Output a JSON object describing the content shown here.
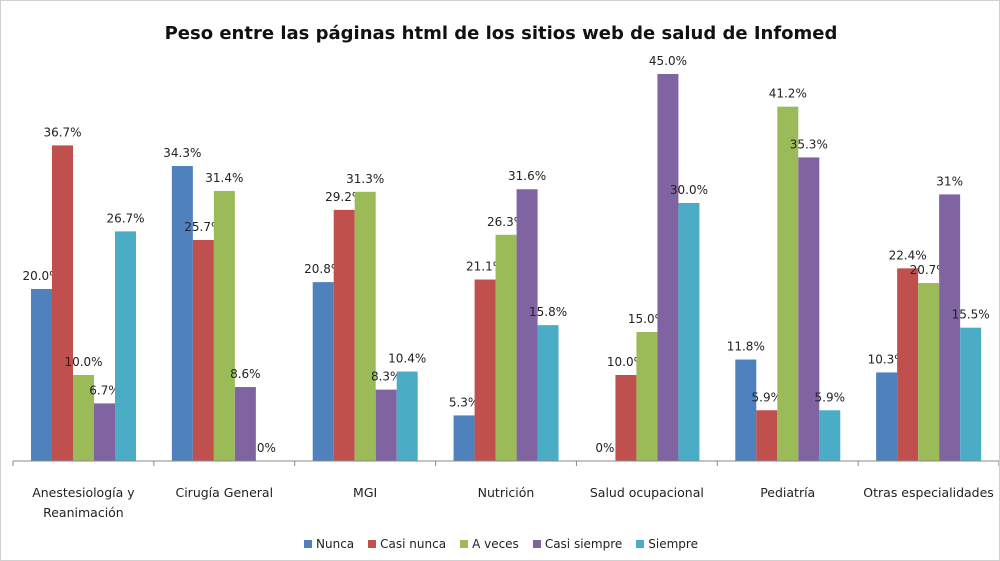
{
  "chart_data": {
    "type": "bar",
    "title": "Peso  entre  las páginas  html  de los sitios web de salud de  Infomed",
    "categories": [
      "Anestesiología y Reanimación",
      "Cirugía General",
      "MGI",
      "Nutrición",
      "Salud ocupacional",
      "Pediatría",
      "Otras especialidades"
    ],
    "series": [
      {
        "name": "Nunca",
        "color": "#4f81bd",
        "values": [
          20.0,
          34.3,
          20.8,
          5.3,
          0,
          11.8,
          10.3
        ],
        "value_labels": [
          "20.0%",
          "34.3%",
          "20.8%",
          "5.3%",
          "0%",
          "11.8%",
          "10.3%"
        ]
      },
      {
        "name": "Casi nunca",
        "color": "#c0504d",
        "values": [
          36.7,
          25.7,
          29.2,
          21.1,
          10.0,
          5.9,
          22.4
        ],
        "value_labels": [
          "36.7%",
          "25.7%",
          "29.2%",
          "21.1%",
          "10.0%",
          "5.9%",
          "22.4%"
        ]
      },
      {
        "name": "A veces",
        "color": "#9bbb59",
        "values": [
          10.0,
          31.4,
          31.3,
          26.3,
          15.0,
          41.2,
          20.7
        ],
        "value_labels": [
          "10.0%",
          "31.4%",
          "31.3%",
          "26.3%",
          "15.0%",
          "41.2%",
          "20.7%"
        ]
      },
      {
        "name": "Casi siempre",
        "color": "#8064a2",
        "values": [
          6.7,
          8.6,
          8.3,
          31.6,
          45.0,
          35.3,
          31
        ],
        "value_labels": [
          "6.7%",
          "8.6%",
          "8.3%",
          "31.6%",
          "45.0%",
          "35.3%",
          "31%"
        ]
      },
      {
        "name": "Siempre",
        "color": "#4bacc6",
        "values": [
          26.7,
          0,
          10.4,
          15.8,
          30.0,
          5.9,
          15.5
        ],
        "value_labels": [
          "26.7%",
          "0%",
          "10.4%",
          "15.8%",
          "30.0%",
          "5.9%",
          "15.5%"
        ]
      }
    ],
    "legend": "bottom"
  }
}
